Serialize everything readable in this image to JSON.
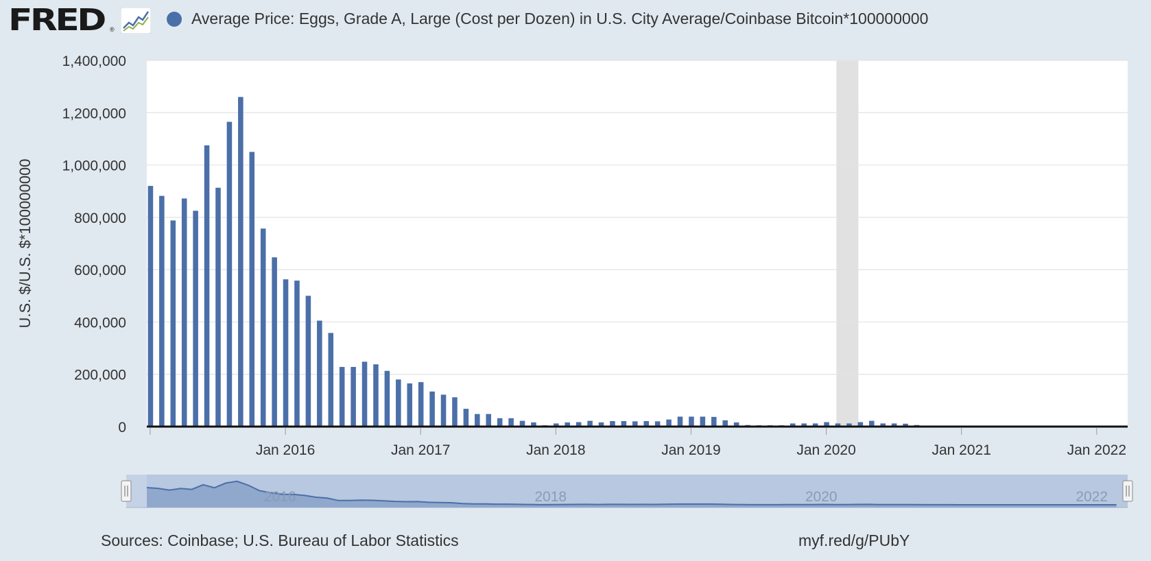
{
  "header": {
    "logo": "FRED",
    "logo_mark": "®",
    "series_label": "Average Price: Eggs, Grade A, Large (Cost per Dozen) in U.S. City Average/Coinbase Bitcoin*100000000",
    "series_color": "#4b6fa8"
  },
  "footer": {
    "sources": "Sources: Coinbase; U.S. Bureau of Labor Statistics",
    "short_url": "myf.red/g/PUbY"
  },
  "colors": {
    "bar": "#4b6fa8",
    "plot_bg": "#ffffff",
    "page_bg": "#e1e9f0",
    "recession": "#e1e1e1",
    "navigator_fill": "#8aa2c8"
  },
  "chart_data": {
    "type": "bar",
    "ylabel": "U.S. $/U.S. $*100000000",
    "ylim": [
      0,
      1400000
    ],
    "yticks": [
      0,
      200000,
      400000,
      600000,
      800000,
      1000000,
      1200000,
      1400000
    ],
    "ytick_labels": [
      "0",
      "200,000",
      "400,000",
      "600,000",
      "800,000",
      "1,000,000",
      "1,200,000",
      "1,400,000"
    ],
    "xlim": [
      "2015-01",
      "2022-04"
    ],
    "xtick_labels": [
      "Jan 2016",
      "Jan 2017",
      "Jan 2018",
      "Jan 2019",
      "Jan 2020",
      "Jan 2021",
      "Jan 2022"
    ],
    "grid": true,
    "legend": "top",
    "recession_shading": [
      "2020-02",
      "2020-04"
    ],
    "navigator_labels": [
      "2016",
      "2018",
      "2020",
      "2022"
    ],
    "x": [
      "2015-01",
      "2015-02",
      "2015-03",
      "2015-04",
      "2015-05",
      "2015-06",
      "2015-07",
      "2015-08",
      "2015-09",
      "2015-10",
      "2015-11",
      "2015-12",
      "2016-01",
      "2016-02",
      "2016-03",
      "2016-04",
      "2016-05",
      "2016-06",
      "2016-07",
      "2016-08",
      "2016-09",
      "2016-10",
      "2016-11",
      "2016-12",
      "2017-01",
      "2017-02",
      "2017-03",
      "2017-04",
      "2017-05",
      "2017-06",
      "2017-07",
      "2017-08",
      "2017-09",
      "2017-10",
      "2017-11",
      "2017-12",
      "2018-01",
      "2018-02",
      "2018-03",
      "2018-04",
      "2018-05",
      "2018-06",
      "2018-07",
      "2018-08",
      "2018-09",
      "2018-10",
      "2018-11",
      "2018-12",
      "2019-01",
      "2019-02",
      "2019-03",
      "2019-04",
      "2019-05",
      "2019-06",
      "2019-07",
      "2019-08",
      "2019-09",
      "2019-10",
      "2019-11",
      "2019-12",
      "2020-01",
      "2020-02",
      "2020-03",
      "2020-04",
      "2020-05",
      "2020-06",
      "2020-07",
      "2020-08",
      "2020-09",
      "2020-10",
      "2020-11",
      "2020-12",
      "2021-01",
      "2021-02",
      "2021-03",
      "2021-04",
      "2021-05",
      "2021-06",
      "2021-07",
      "2021-08",
      "2021-09",
      "2021-10",
      "2021-11",
      "2021-12",
      "2022-01",
      "2022-02",
      "2022-03"
    ],
    "values": [
      920000,
      882000,
      788000,
      872000,
      825000,
      1075000,
      913000,
      1165000,
      1260000,
      1050000,
      757000,
      647000,
      563000,
      558000,
      500000,
      405000,
      358000,
      228000,
      228000,
      248000,
      238000,
      213000,
      180000,
      165000,
      170000,
      134000,
      122000,
      112000,
      68000,
      48000,
      48000,
      32000,
      32000,
      22000,
      16000,
      5000,
      12000,
      16000,
      17000,
      22000,
      16000,
      21000,
      21000,
      20000,
      21000,
      20000,
      27000,
      38000,
      38000,
      38000,
      37000,
      24000,
      16000,
      6000,
      5000,
      5000,
      5000,
      12000,
      12000,
      12000,
      17000,
      12000,
      12000,
      17000,
      22000,
      12000,
      12000,
      11000,
      6000,
      4000,
      3000,
      2000,
      1500,
      1000,
      800,
      800,
      1000,
      1200,
      1200,
      1000,
      1000,
      800,
      800,
      900,
      1000,
      1100,
      1100
    ]
  }
}
